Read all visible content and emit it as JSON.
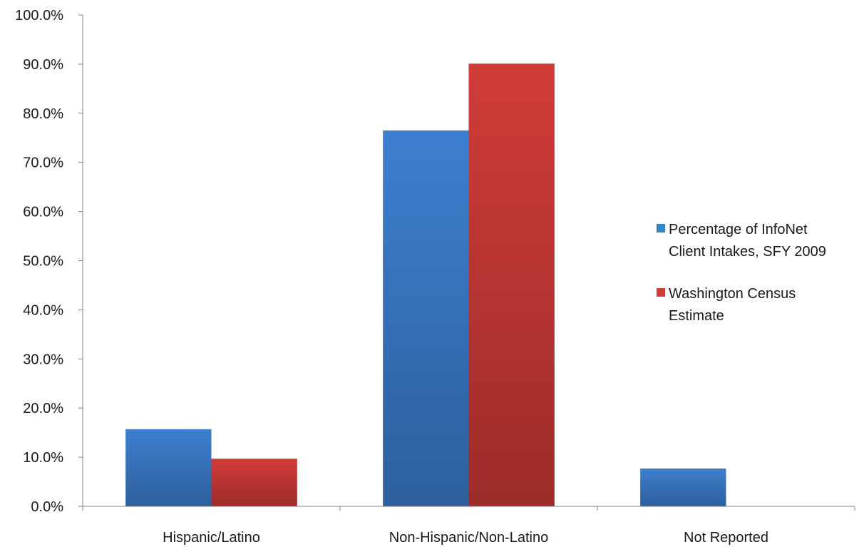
{
  "chart_data": {
    "type": "bar",
    "title": "",
    "xlabel": "",
    "ylabel": "",
    "categories": [
      "Hispanic/Latino",
      "Non-Hispanic/Non-Latino",
      "Not Reported"
    ],
    "series": [
      {
        "name": "Percentage of InfoNet Client Intakes, SFY 2009",
        "legend_lines": [
          "Percentage of InfoNet",
          "Client Intakes, SFY 2009"
        ],
        "values": [
          15.7,
          76.5,
          7.7
        ],
        "color_top": "#3d7fcf",
        "color_bottom": "#2d5f9c"
      },
      {
        "name": "Washington Census Estimate",
        "legend_lines": [
          "Washington Census",
          "Estimate"
        ],
        "values": [
          9.7,
          90.1,
          0
        ],
        "color_top": "#d03c38",
        "color_bottom": "#9c2c2a"
      }
    ],
    "ylim": [
      0,
      100
    ],
    "yticks": [
      "0.0%",
      "10.0%",
      "20.0%",
      "30.0%",
      "40.0%",
      "50.0%",
      "60.0%",
      "70.0%",
      "80.0%",
      "90.0%",
      "100.0%"
    ],
    "grid": false,
    "legend_position": "right"
  }
}
